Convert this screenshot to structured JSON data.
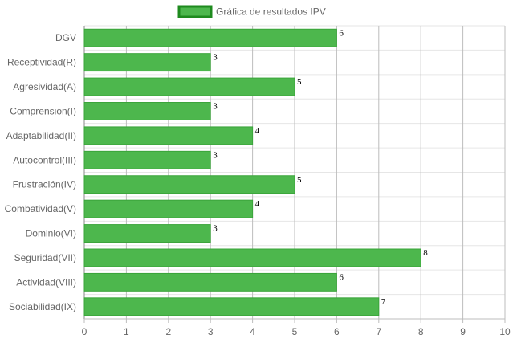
{
  "chart_data": {
    "type": "bar",
    "orientation": "horizontal",
    "legend": {
      "label": "Gráfica de resultados IPV",
      "position": "top"
    },
    "categories": [
      "DGV",
      "Receptividad(R)",
      "Agresividad(A)",
      "Comprensión(I)",
      "Adaptabilidad(II)",
      "Autocontrol(III)",
      "Frustración(IV)",
      "Combatividad(V)",
      "Dominio(VI)",
      "Seguridad(VII)",
      "Actividad(VIII)",
      "Sociabilidad(IX)"
    ],
    "series": [
      {
        "name": "Gráfica de resultados IPV",
        "values": [
          6,
          3,
          5,
          3,
          4,
          3,
          5,
          4,
          3,
          8,
          6,
          7
        ]
      }
    ],
    "xlim": [
      0,
      10
    ],
    "x_ticks": [
      "0",
      "1",
      "2",
      "3",
      "4",
      "5",
      "6",
      "7",
      "8",
      "9",
      "10"
    ],
    "grid": true,
    "colors": {
      "bar_fill": "#4db74d",
      "bar_border": "#3aa43a",
      "legend_fill": "#4db74d",
      "legend_border": "#1e8a1e"
    }
  }
}
